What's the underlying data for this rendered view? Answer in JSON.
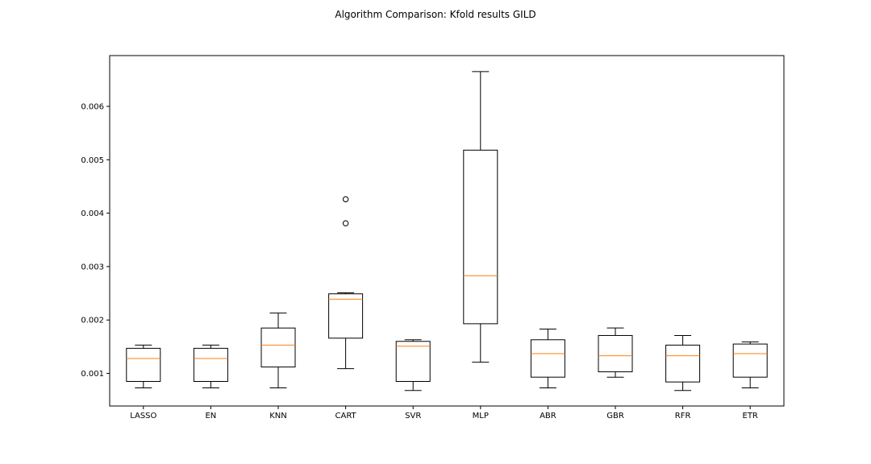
{
  "chart_data": {
    "type": "box",
    "title": "Algorithm Comparison: Kfold results GILD",
    "xlabel": "",
    "ylabel": "",
    "ylim": [
      0.00039,
      0.00695
    ],
    "yticks": [
      0.001,
      0.002,
      0.003,
      0.004,
      0.005,
      0.006
    ],
    "ytick_labels": [
      "0.001",
      "0.002",
      "0.003",
      "0.004",
      "0.005",
      "0.006"
    ],
    "grid": false,
    "legend": "none",
    "categories": [
      "LASSO",
      "EN",
      "KNN",
      "CART",
      "SVR",
      "MLP",
      "ABR",
      "GBR",
      "RFR",
      "ETR"
    ],
    "boxes": [
      {
        "name": "LASSO",
        "whisker_low": 0.00073,
        "q1": 0.00085,
        "median": 0.00128,
        "q3": 0.00147,
        "whisker_high": 0.00153,
        "outliers": []
      },
      {
        "name": "EN",
        "whisker_low": 0.00073,
        "q1": 0.00085,
        "median": 0.00128,
        "q3": 0.00147,
        "whisker_high": 0.00153,
        "outliers": []
      },
      {
        "name": "KNN",
        "whisker_low": 0.00073,
        "q1": 0.00112,
        "median": 0.00153,
        "q3": 0.00185,
        "whisker_high": 0.00213,
        "outliers": []
      },
      {
        "name": "CART",
        "whisker_low": 0.00109,
        "q1": 0.00166,
        "median": 0.00239,
        "q3": 0.00249,
        "whisker_high": 0.00251,
        "outliers": [
          0.00381,
          0.00426
        ]
      },
      {
        "name": "SVR",
        "whisker_low": 0.00068,
        "q1": 0.00085,
        "median": 0.00151,
        "q3": 0.0016,
        "whisker_high": 0.00163,
        "outliers": []
      },
      {
        "name": "MLP",
        "whisker_low": 0.00121,
        "q1": 0.00193,
        "median": 0.00283,
        "q3": 0.00518,
        "whisker_high": 0.00665,
        "outliers": []
      },
      {
        "name": "ABR",
        "whisker_low": 0.00073,
        "q1": 0.00093,
        "median": 0.00137,
        "q3": 0.00163,
        "whisker_high": 0.00183,
        "outliers": []
      },
      {
        "name": "GBR",
        "whisker_low": 0.00093,
        "q1": 0.00103,
        "median": 0.00133,
        "q3": 0.00171,
        "whisker_high": 0.00185,
        "outliers": []
      },
      {
        "name": "RFR",
        "whisker_low": 0.00068,
        "q1": 0.00084,
        "median": 0.00133,
        "q3": 0.00153,
        "whisker_high": 0.00171,
        "outliers": []
      },
      {
        "name": "ETR",
        "whisker_low": 0.00073,
        "q1": 0.00093,
        "median": 0.00137,
        "q3": 0.00155,
        "whisker_high": 0.00159,
        "outliers": []
      }
    ],
    "colors": {
      "box": "#000000",
      "median": "#ff7f0e",
      "background": "#ffffff"
    }
  }
}
